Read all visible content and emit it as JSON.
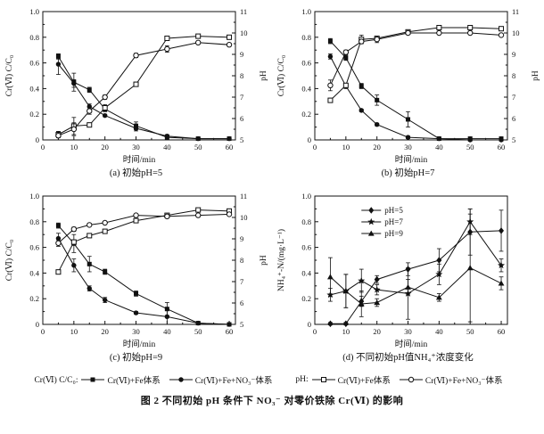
{
  "figure": {
    "caption": "图 2  不同初始 pH 条件下 NO₃⁻ 对零价铁除 Cr(Ⅵ) 的影响"
  },
  "bottom_legend": {
    "group1_prefix": "Cr(Ⅵ) C/C₀:",
    "group2_prefix": "pH:",
    "items": [
      {
        "marker": "filled-square",
        "label": "Cr(Ⅵ)+Fe体系"
      },
      {
        "marker": "filled-circle",
        "label": "Cr(Ⅵ)+Fe+NO₃⁻体系"
      },
      {
        "marker": "open-square",
        "label": "Cr(Ⅵ)+Fe体系"
      },
      {
        "marker": "open-circle",
        "label": "Cr(Ⅵ)+Fe+NO₃⁻体系"
      }
    ]
  },
  "colors": {
    "line": "#111111",
    "background": "#ffffff"
  },
  "chart_data": [
    {
      "id": "a",
      "type": "line",
      "caption": "(a) 初始pH=5",
      "xlabel": "时间/min",
      "ylabel": "Cr(Ⅵ) C/C₀",
      "y2label": "pH",
      "xlim": [
        0,
        62
      ],
      "ylim": [
        0,
        1
      ],
      "y2lim": [
        5,
        11
      ],
      "xticks": [
        0,
        10,
        20,
        30,
        40,
        50,
        60
      ],
      "yticks": [
        0,
        0.2,
        0.4,
        0.6,
        0.8,
        1.0
      ],
      "y2ticks": [
        5,
        6,
        7,
        8,
        9,
        10,
        11
      ],
      "x": [
        5,
        10,
        15,
        20,
        30,
        40,
        50,
        60
      ],
      "series": [
        {
          "name": "Cr(Ⅵ)+Fe体系",
          "marker": "filled-square",
          "axis": "left",
          "values": [
            0.65,
            0.45,
            0.39,
            0.24,
            0.11,
            0.02,
            0.01,
            0.01
          ],
          "err": [
            0.02,
            0.07,
            0.02,
            0.02,
            0.03,
            0.02,
            0.01,
            0.01
          ]
        },
        {
          "name": "Cr(Ⅵ)+Fe+NO₃⁻体系",
          "marker": "filled-circle",
          "axis": "left",
          "values": [
            0.59,
            0.44,
            0.26,
            0.19,
            0.09,
            0.03,
            0.01,
            0.01
          ],
          "err": [
            0.08,
            0.03,
            0.02,
            0.01,
            0.02,
            0.01,
            0.01,
            0.01
          ]
        },
        {
          "name": "pH Cr(Ⅵ)+Fe体系",
          "marker": "open-square",
          "axis": "right",
          "values": [
            5.25,
            5.65,
            5.7,
            6.5,
            7.6,
            9.75,
            9.85,
            9.8
          ],
          "err": [
            0.15,
            0.4,
            0.1,
            0.15,
            0.1,
            0.1,
            0.05,
            0.1
          ]
        },
        {
          "name": "pH Cr(Ⅵ)+Fe+NO₃⁻体系",
          "marker": "open-circle",
          "axis": "right",
          "values": [
            5.2,
            5.5,
            6.35,
            7.0,
            8.95,
            9.25,
            9.55,
            9.45
          ],
          "err": [
            0.2,
            0.3,
            0.15,
            0.1,
            0.1,
            0.15,
            0.05,
            0.05
          ]
        }
      ]
    },
    {
      "id": "b",
      "type": "line",
      "caption": "(b) 初始pH=7",
      "xlabel": "时间/min",
      "ylabel": "Cr(Ⅵ) C/C₀",
      "y2label": "pH",
      "xlim": [
        0,
        62
      ],
      "ylim": [
        0,
        1
      ],
      "y2lim": [
        5,
        11
      ],
      "xticks": [
        0,
        10,
        20,
        30,
        40,
        50,
        60
      ],
      "yticks": [
        0,
        0.2,
        0.4,
        0.6,
        0.8,
        1.0
      ],
      "y2ticks": [
        5,
        6,
        7,
        8,
        9,
        10,
        11
      ],
      "x": [
        5,
        10,
        15,
        20,
        30,
        40,
        50,
        60
      ],
      "series": [
        {
          "name": "Cr(Ⅵ)+Fe体系",
          "marker": "filled-square",
          "axis": "left",
          "values": [
            0.77,
            0.64,
            0.42,
            0.31,
            0.16,
            0.01,
            0.01,
            0.01
          ],
          "err": [
            0.02,
            0.02,
            0.02,
            0.04,
            0.06,
            0.01,
            0.01,
            0.01
          ]
        },
        {
          "name": "Cr(Ⅵ)+Fe+NO₃⁻体系",
          "marker": "filled-circle",
          "axis": "left",
          "values": [
            0.65,
            0.42,
            0.23,
            0.12,
            0.02,
            0.01,
            0.0,
            0.0
          ],
          "err": [
            0.02,
            0.02,
            0.01,
            0.01,
            0.01,
            0.01,
            0.01,
            0.01
          ]
        },
        {
          "name": "pH Cr(Ⅵ)+Fe体系",
          "marker": "open-square",
          "axis": "right",
          "values": [
            6.85,
            7.55,
            9.7,
            9.75,
            10.05,
            10.25,
            10.25,
            10.2
          ],
          "err": [
            0.1,
            0.1,
            0.2,
            0.1,
            0.05,
            0.05,
            0.05,
            0.05
          ]
        },
        {
          "name": "pH Cr(Ⅵ)+Fe+NO₃⁻体系",
          "marker": "open-circle",
          "axis": "right",
          "values": [
            7.55,
            9.1,
            9.6,
            9.7,
            10.0,
            10.0,
            10.0,
            9.9
          ],
          "err": [
            0.25,
            0.1,
            0.1,
            0.15,
            0.05,
            0.05,
            0.05,
            0.05
          ]
        }
      ]
    },
    {
      "id": "c",
      "type": "line",
      "caption": "(c) 初始pH=9",
      "xlabel": "时间/min",
      "ylabel": "Cr(Ⅵ) C/C₀",
      "y2label": "pH",
      "xlim": [
        0,
        62
      ],
      "ylim": [
        0,
        1
      ],
      "y2lim": [
        5,
        11
      ],
      "xticks": [
        0,
        10,
        20,
        30,
        40,
        50,
        60
      ],
      "yticks": [
        0,
        0.2,
        0.4,
        0.6,
        0.8,
        1.0
      ],
      "y2ticks": [
        5,
        6,
        7,
        8,
        9,
        10,
        11
      ],
      "x": [
        5,
        10,
        15,
        20,
        30,
        40,
        50,
        60
      ],
      "series": [
        {
          "name": "Cr(Ⅵ)+Fe体系",
          "marker": "filled-square",
          "axis": "left",
          "values": [
            0.77,
            0.63,
            0.47,
            0.41,
            0.24,
            0.12,
            0.01,
            0.0
          ],
          "err": [
            0.02,
            0.07,
            0.06,
            0.02,
            0.02,
            0.05,
            0.01,
            0.01
          ]
        },
        {
          "name": "Cr(Ⅵ)+Fe+NO₃⁻体系",
          "marker": "filled-circle",
          "axis": "left",
          "values": [
            0.67,
            0.46,
            0.28,
            0.19,
            0.09,
            0.06,
            0.01,
            0.0
          ],
          "err": [
            0.04,
            0.05,
            0.02,
            0.02,
            0.01,
            0.06,
            0.01,
            0.01
          ]
        },
        {
          "name": "pH Cr(Ⅵ)+Fe体系",
          "marker": "open-square",
          "axis": "right",
          "values": [
            7.45,
            8.85,
            9.15,
            9.35,
            9.85,
            10.1,
            10.35,
            10.3
          ],
          "err": [
            0.1,
            0.1,
            0.1,
            0.1,
            0.05,
            0.05,
            0.05,
            0.05
          ]
        },
        {
          "name": "pH Cr(Ⅵ)+Fe+NO₃⁻体系",
          "marker": "open-circle",
          "axis": "right",
          "values": [
            8.8,
            9.45,
            9.65,
            9.75,
            10.1,
            10.05,
            10.1,
            10.15
          ],
          "err": [
            0.15,
            0.1,
            0.05,
            0.05,
            0.05,
            0.05,
            0.05,
            0.05
          ]
        }
      ]
    },
    {
      "id": "d",
      "type": "line",
      "caption": "(d) 不同初始pH值NH₄⁺浓度变化",
      "xlabel": "时间/min",
      "ylabel": "NH₄⁺-N/(mg·L⁻¹)",
      "xlim": [
        0,
        62
      ],
      "ylim": [
        0,
        1
      ],
      "xticks": [
        0,
        10,
        20,
        30,
        40,
        50,
        60
      ],
      "yticks": [
        0,
        0.2,
        0.4,
        0.6,
        0.8,
        1.0
      ],
      "x": [
        5,
        10,
        15,
        20,
        30,
        40,
        50,
        60
      ],
      "legend": true,
      "series": [
        {
          "name": "pH=5",
          "marker": "filled-diamond",
          "axis": "left",
          "values": [
            0.005,
            0.005,
            0.18,
            0.35,
            0.43,
            0.5,
            0.72,
            0.73
          ],
          "err": [
            0.01,
            0.01,
            0.04,
            0.03,
            0.05,
            0.09,
            0.18,
            0.16
          ]
        },
        {
          "name": "pH=7",
          "marker": "filled-star",
          "axis": "left",
          "values": [
            0.23,
            0.26,
            0.34,
            0.27,
            0.24,
            0.39,
            0.8,
            0.46
          ],
          "err": [
            0.05,
            0.13,
            0.09,
            0.04,
            0.2,
            0.08,
            0.1,
            0.05
          ]
        },
        {
          "name": "pH=9",
          "marker": "filled-triangle",
          "axis": "left",
          "values": [
            0.37,
            0.26,
            0.16,
            0.17,
            0.29,
            0.21,
            0.44,
            0.32
          ],
          "err": [
            0.15,
            0.13,
            0.1,
            0.03,
            0.06,
            0.03,
            0.42,
            0.05
          ]
        }
      ]
    }
  ]
}
